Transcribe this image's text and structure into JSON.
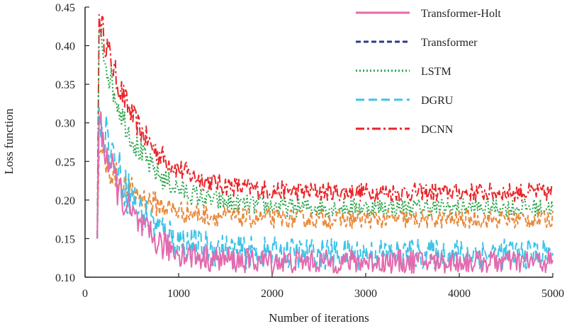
{
  "chart_data": {
    "type": "line",
    "title": "",
    "xlabel": "Number of iterations",
    "ylabel": "Loss function",
    "xlim": [
      0,
      5000
    ],
    "ylim": [
      0.1,
      0.45
    ],
    "x_ticks": [
      0,
      1000,
      2000,
      3000,
      4000,
      5000
    ],
    "x_tick_labels": [
      "0",
      "1000",
      "2000",
      "3000",
      "4000",
      "5000"
    ],
    "y_ticks": [
      0.1,
      0.15,
      0.2,
      0.25,
      0.3,
      0.35,
      0.4,
      0.45
    ],
    "y_tick_labels": [
      "0.10",
      "0.15",
      "0.20",
      "0.25",
      "0.30",
      "0.35",
      "0.40",
      "0.45"
    ],
    "legend_position": "top-right",
    "x_start": 130,
    "series": [
      {
        "name": "Transformer-Holt",
        "color": "#e46aae",
        "dash": "solid",
        "peak": 0.3,
        "final": 0.12,
        "amp": 0.015,
        "decay": 320
      },
      {
        "name": "Transformer",
        "color": "#e88a3c",
        "dash": "dash",
        "legend_color": "#2b3a8f",
        "peak": 0.26,
        "final": 0.175,
        "amp": 0.012,
        "decay": 420
      },
      {
        "name": "LSTM",
        "color": "#2aa34a",
        "dash": "dot",
        "peak": 0.42,
        "final": 0.19,
        "amp": 0.012,
        "decay": 380
      },
      {
        "name": "DGRU",
        "color": "#3cc3e8",
        "dash": "longdash",
        "peak": 0.32,
        "final": 0.13,
        "amp": 0.02,
        "decay": 360
      },
      {
        "name": "DCNN",
        "color": "#e8262a",
        "dash": "dashdot",
        "peak": 0.44,
        "final": 0.21,
        "amp": 0.012,
        "decay": 420
      }
    ]
  }
}
